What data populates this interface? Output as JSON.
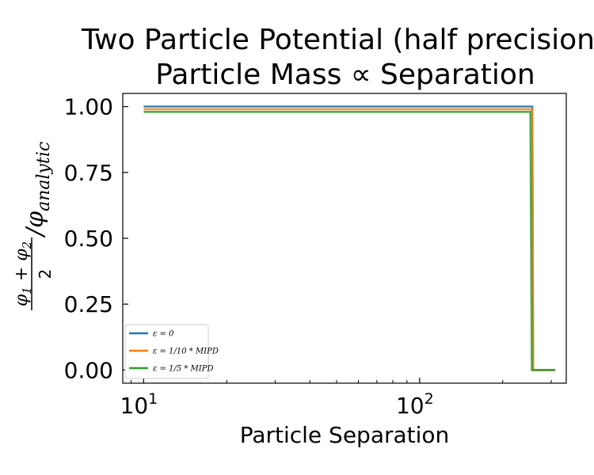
{
  "chart_data": {
    "type": "line",
    "title_line1": "Two Particle Potential (half precision)",
    "title_line2": "Particle Mass ∝ Separation",
    "xlabel": "Particle Separation",
    "ylabel": "(φ1 + φ2)/2 / φanalytic",
    "xscale": "log",
    "xlim": [
      8.4,
      340
    ],
    "ylim": [
      -0.05,
      1.05
    ],
    "xticks": [
      {
        "value": 10,
        "base": "10",
        "exp": "1"
      },
      {
        "value": 100,
        "base": "10",
        "exp": "2"
      }
    ],
    "yticks": [
      {
        "value": 0.0,
        "label": "0.00"
      },
      {
        "value": 0.25,
        "label": "0.25"
      },
      {
        "value": 0.5,
        "label": "0.50"
      },
      {
        "value": 0.75,
        "label": "0.75"
      },
      {
        "value": 1.0,
        "label": "1.00"
      }
    ],
    "grid": false,
    "legend_position": "lower-left",
    "series": [
      {
        "name": "ε = 0",
        "color": "#1f77b4",
        "x": [
          10,
          256,
          258,
          310
        ],
        "y": [
          1.0,
          1.0,
          0.0,
          0.0
        ]
      },
      {
        "name": "ε = 1/10 * MIPD",
        "color": "#ff7f0e",
        "x": [
          10,
          256,
          258,
          310
        ],
        "y": [
          0.99,
          0.99,
          0.0,
          0.0
        ]
      },
      {
        "name": "ε = 1/5 * MIPD",
        "color": "#2ca02c",
        "x": [
          10,
          252,
          255,
          310
        ],
        "y": [
          0.98,
          0.98,
          0.0,
          0.0
        ]
      }
    ]
  }
}
